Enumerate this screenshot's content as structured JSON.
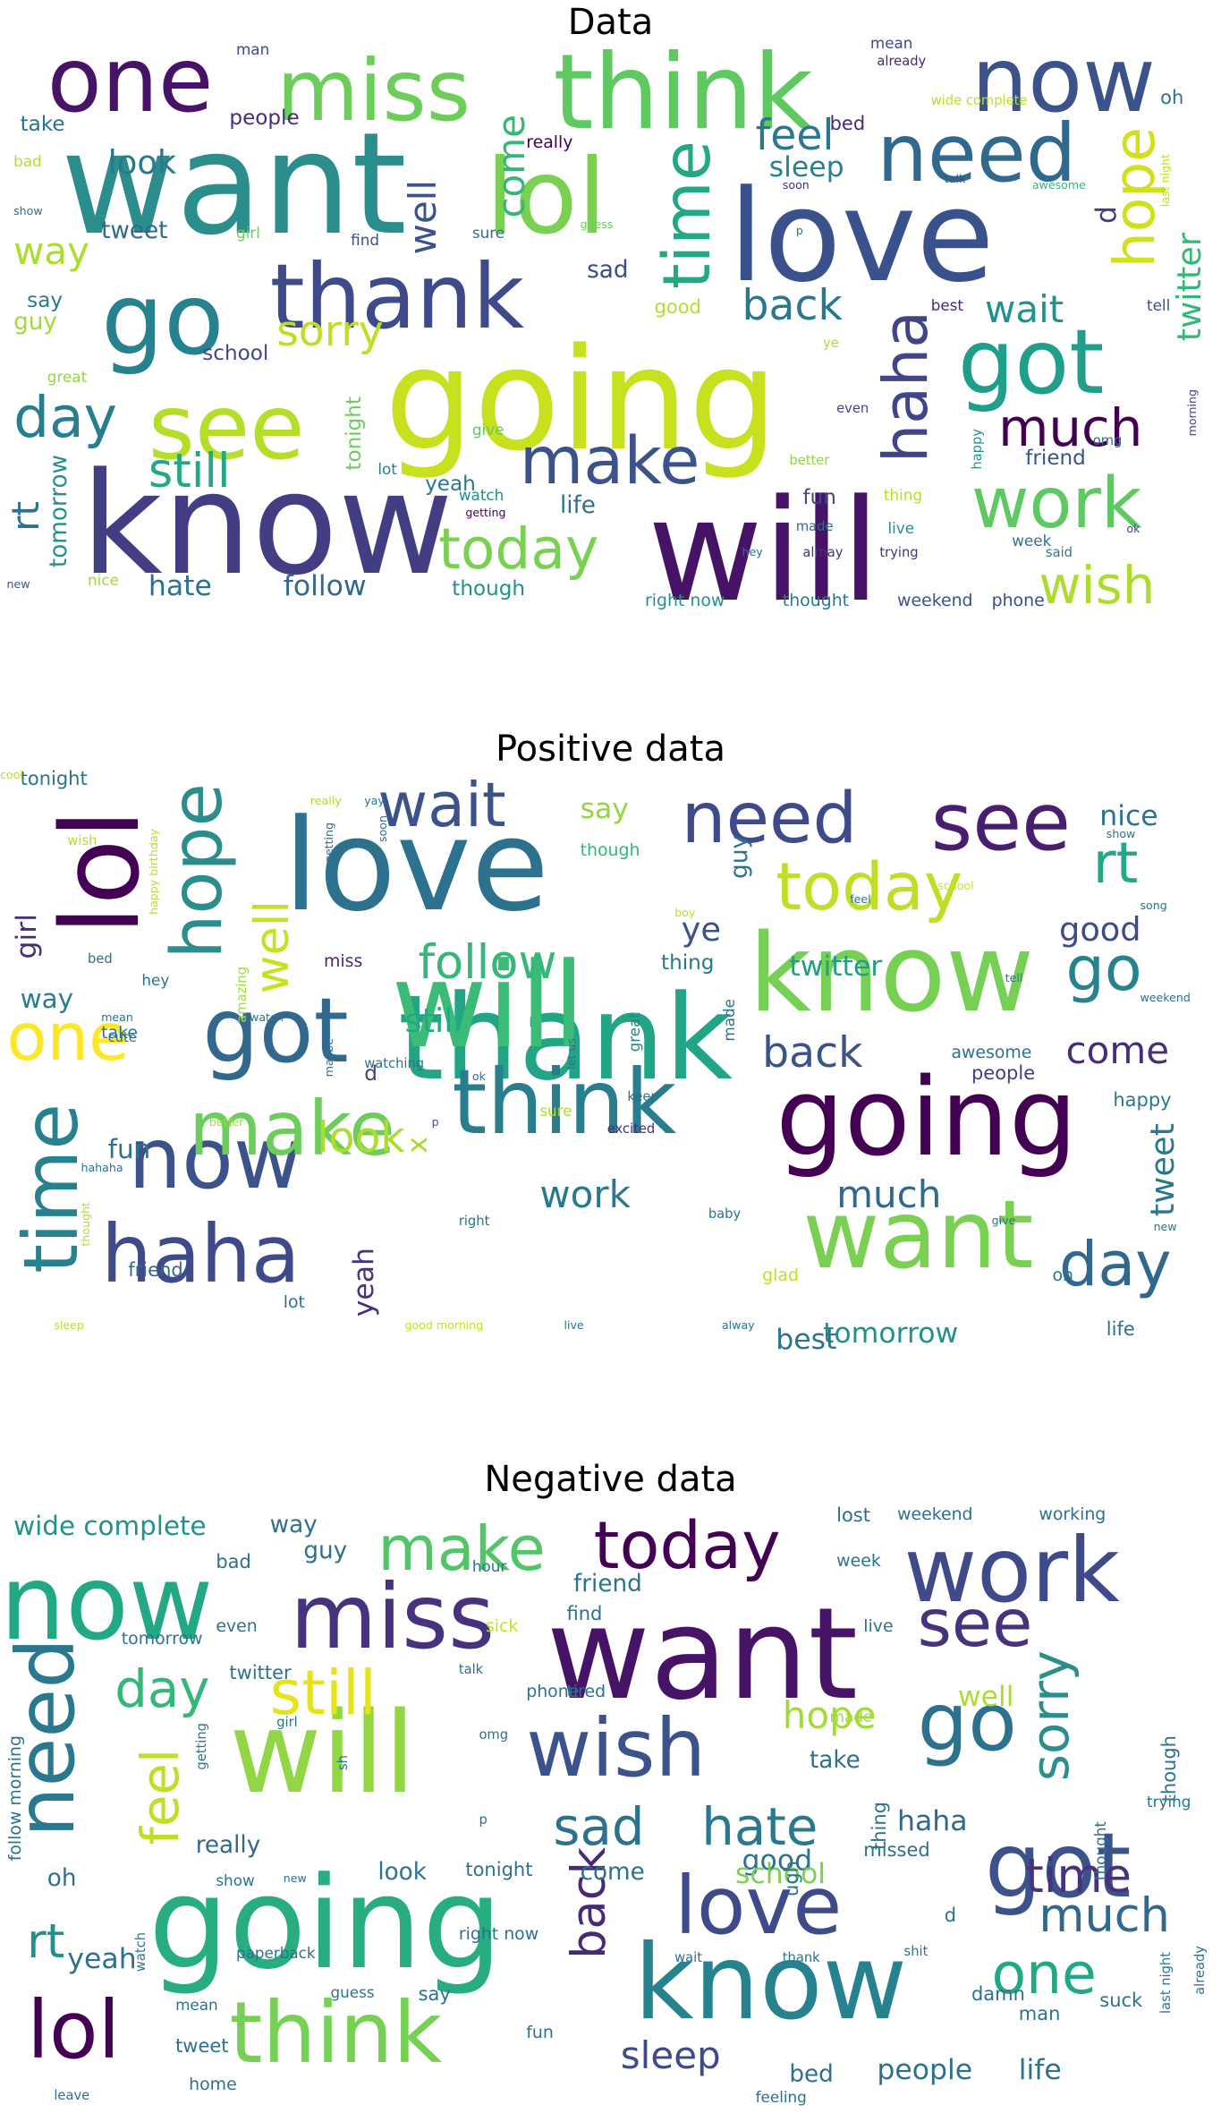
{
  "colors": {
    "background": "#ffffff",
    "title": "#000000"
  },
  "panels": [
    {
      "title": "Data",
      "words": [
        [
          "want",
          "#2c8e8c"
        ],
        [
          "going",
          "#c7e11f"
        ],
        [
          "know",
          "#433d84"
        ],
        [
          "will",
          "#471366"
        ],
        [
          "love",
          "#3a528b"
        ],
        [
          "think",
          "#5ec961"
        ],
        [
          "lol",
          "#7ad151"
        ],
        [
          "go",
          "#26828e"
        ],
        [
          "thank",
          "#3e4a89"
        ],
        [
          "see",
          "#b5de2b"
        ],
        [
          "one",
          "#471366"
        ],
        [
          "miss",
          "#6ccd5a"
        ],
        [
          "now",
          "#3b528b"
        ],
        [
          "got",
          "#1f9e89"
        ],
        [
          "need",
          "#31688e"
        ],
        [
          "make",
          "#3b528b"
        ],
        [
          "work",
          "#5ec962"
        ],
        [
          "today",
          "#7ad151"
        ],
        [
          "wish",
          "#addc30"
        ],
        [
          "time",
          "#22a884"
        ],
        [
          "haha",
          "#414487"
        ],
        [
          "much",
          "#440154"
        ],
        [
          "day",
          "#287d8e"
        ],
        [
          "hope",
          "#d0e11c"
        ],
        [
          "feel",
          "#2a788e"
        ],
        [
          "still",
          "#22a884"
        ],
        [
          "sorry",
          "#bddf26"
        ],
        [
          "back",
          "#2a788e"
        ],
        [
          "wait",
          "#21918c"
        ],
        [
          "come",
          "#35b779"
        ],
        [
          "well",
          "#3b528b"
        ],
        [
          "look",
          "#2a788e"
        ],
        [
          "way",
          "#addc30"
        ],
        [
          "sleep",
          "#26828e"
        ],
        [
          "hate",
          "#2c728e"
        ],
        [
          "follow",
          "#31688e"
        ],
        [
          "rt",
          "#2c728e"
        ],
        [
          "tomorrow",
          "#21918c"
        ],
        [
          "twitter",
          "#35b779"
        ],
        [
          "tweet",
          "#31688e"
        ],
        [
          "people",
          "#472d7b"
        ],
        [
          "sad",
          "#3e4a89"
        ],
        [
          "good",
          "#b5de2b"
        ],
        [
          "school",
          "#3e4a89"
        ],
        [
          "yeah",
          "#2a788e"
        ],
        [
          "life",
          "#2c728e"
        ],
        [
          "say",
          "#287d8e"
        ],
        [
          "guy",
          "#a2da37"
        ],
        [
          "take",
          "#2c728e"
        ],
        [
          "tonight",
          "#6ccd5a"
        ],
        [
          "friend",
          "#3b528b"
        ],
        [
          "fun",
          "#3e4a89"
        ],
        [
          "though",
          "#21918c"
        ],
        [
          "right now",
          "#21918c"
        ],
        [
          "thought",
          "#2a788e"
        ],
        [
          "weekend",
          "#3b528b"
        ],
        [
          "phone",
          "#3e4a89"
        ],
        [
          "d",
          "#433d84"
        ],
        [
          "bed",
          "#482878"
        ],
        [
          "oh",
          "#2c728e"
        ],
        [
          "mean",
          "#3e4a89"
        ],
        [
          "man",
          "#3e4a89"
        ],
        [
          "really",
          "#440154"
        ],
        [
          "sure",
          "#2c728e"
        ],
        [
          "find",
          "#3b528b"
        ],
        [
          "girl",
          "#6ccd5a"
        ],
        [
          "best",
          "#482878"
        ],
        [
          "tell",
          "#3b528b"
        ],
        [
          "great",
          "#90d743"
        ],
        [
          "lot",
          "#26828e"
        ],
        [
          "watch",
          "#21918c"
        ],
        [
          "getting",
          "#440154"
        ],
        [
          "give",
          "#5ec962"
        ],
        [
          "even",
          "#414487"
        ],
        [
          "happy",
          "#21918c"
        ],
        [
          "better",
          "#8fd744"
        ],
        [
          "made",
          "#31688e"
        ],
        [
          "live",
          "#21918c"
        ],
        [
          "trying",
          "#46327e"
        ],
        [
          "week",
          "#2c728e"
        ],
        [
          "thing",
          "#b5de2b"
        ],
        [
          "omg",
          "#31688e"
        ],
        [
          "nice",
          "#a2da37"
        ],
        [
          "new",
          "#3b528b"
        ],
        [
          "bad",
          "#b5de2b"
        ],
        [
          "show",
          "#2c728e"
        ],
        [
          "already",
          "#482878"
        ],
        [
          "wide complete",
          "#bddf26"
        ],
        [
          "last night",
          "#bddf26"
        ],
        [
          "soon",
          "#46327e"
        ],
        [
          "talk",
          "#3b528b"
        ],
        [
          "awesome",
          "#35b779"
        ],
        [
          "guess",
          "#6ccd5a"
        ],
        [
          "p",
          "#2c728e"
        ],
        [
          "ye",
          "#addc30"
        ],
        [
          "morning",
          "#433d84"
        ],
        [
          "hey",
          "#2c728e"
        ],
        [
          "almay",
          "#46327e"
        ],
        [
          "ok",
          "#414487"
        ],
        [
          "said",
          "#287d8e"
        ]
      ]
    },
    {
      "title": "Positive data",
      "words": [
        [
          "love",
          "#2c728e"
        ],
        [
          "thank",
          "#21a585"
        ],
        [
          "going",
          "#440154"
        ],
        [
          "will",
          "#3bbb75"
        ],
        [
          "know",
          "#75d054"
        ],
        [
          "lol",
          "#440154"
        ],
        [
          "think",
          "#287d8e"
        ],
        [
          "want",
          "#7ad151"
        ],
        [
          "got",
          "#31688e"
        ],
        [
          "haha",
          "#3e4a89"
        ],
        [
          "now",
          "#3b528b"
        ],
        [
          "time",
          "#26828e"
        ],
        [
          "make",
          "#6ccd5a"
        ],
        [
          "see",
          "#481f70"
        ],
        [
          "need",
          "#3e4a89"
        ],
        [
          "wait",
          "#3b528b"
        ],
        [
          "today",
          "#bddf26"
        ],
        [
          "hope",
          "#2c8e8c"
        ],
        [
          "one",
          "#fde725"
        ],
        [
          "day",
          "#31688e"
        ],
        [
          "go",
          "#26828e"
        ],
        [
          "rt",
          "#22a884"
        ],
        [
          "follow",
          "#35b779"
        ],
        [
          "back",
          "#3b528b"
        ],
        [
          "look",
          "#addc30"
        ],
        [
          "work",
          "#2a788e"
        ],
        [
          "much",
          "#31688e"
        ],
        [
          "come",
          "#472d7b"
        ],
        [
          "good",
          "#3e4a89"
        ],
        [
          "well",
          "#c7e11f"
        ],
        [
          "tweet",
          "#2a788e"
        ],
        [
          "still",
          "#22a884"
        ],
        [
          "girl",
          "#472d7b"
        ],
        [
          "twitter",
          "#1f9e89"
        ],
        [
          "tomorrow",
          "#21918c"
        ],
        [
          "best",
          "#2c728e"
        ],
        [
          "guy",
          "#2c728e"
        ],
        [
          "yeah",
          "#46327e"
        ],
        [
          "fun",
          "#2c728e"
        ],
        [
          "say",
          "#90d743"
        ],
        [
          "nice",
          "#2c728e"
        ],
        [
          "way",
          "#287d8e"
        ],
        [
          "ye",
          "#3b528b"
        ],
        [
          "x",
          "#a2da37"
        ],
        [
          "d",
          "#433d84"
        ],
        [
          "tonight",
          "#2c728e"
        ],
        [
          "though",
          "#35b779"
        ],
        [
          "thing",
          "#2a788e"
        ],
        [
          "people",
          "#433d84"
        ],
        [
          "happy",
          "#2a788e"
        ],
        [
          "friend",
          "#31688e"
        ],
        [
          "lot",
          "#2c728e"
        ],
        [
          "awesome",
          "#2c728e"
        ],
        [
          "life",
          "#2c728e"
        ],
        [
          "miss",
          "#482878"
        ],
        [
          "glad",
          "#bddf26"
        ],
        [
          "oh",
          "#2c728e"
        ],
        [
          "take",
          "#2c728e"
        ],
        [
          "hey",
          "#2c728e"
        ],
        [
          "great",
          "#26828e"
        ],
        [
          "made",
          "#2c728e"
        ],
        [
          "amazing",
          "#a2da37"
        ],
        [
          "bed",
          "#2c728e"
        ],
        [
          "watching",
          "#2c728e"
        ],
        [
          "sure",
          "#addc30"
        ],
        [
          "excited",
          "#472d7b"
        ],
        [
          "let us",
          "#2c728e"
        ],
        [
          "keep",
          "#2c728e"
        ],
        [
          "baby",
          "#2c728e"
        ],
        [
          "right",
          "#2c728e"
        ],
        [
          "p",
          "#3b528b"
        ],
        [
          "cute",
          "#2c728e"
        ],
        [
          "mean",
          "#2c728e"
        ],
        [
          "watch",
          "#2c728e"
        ],
        [
          "maybe",
          "#2c728e"
        ],
        [
          "better",
          "#a2da37"
        ],
        [
          "ok",
          "#2c728e"
        ],
        [
          "give",
          "#2c728e"
        ],
        [
          "new",
          "#2c728e"
        ],
        [
          "really",
          "#addc30"
        ],
        [
          "yay",
          "#2c728e"
        ],
        [
          "wish",
          "#b5de2b"
        ],
        [
          "happy birthday",
          "#bddf26"
        ],
        [
          "getting",
          "#2c728e"
        ],
        [
          "soon",
          "#2c728e"
        ],
        [
          "boy",
          "#bddf26"
        ],
        [
          "feel",
          "#2c728e"
        ],
        [
          "school",
          "#d0e11c"
        ],
        [
          "song",
          "#2c728e"
        ],
        [
          "show",
          "#2c728e"
        ],
        [
          "tell",
          "#2c728e"
        ],
        [
          "weekend",
          "#2c728e"
        ],
        [
          "hahaha",
          "#2c728e"
        ],
        [
          "thought",
          "#b5de2b"
        ],
        [
          "sleep",
          "#bddf26"
        ],
        [
          "good morning",
          "#bddf26"
        ],
        [
          "live",
          "#2c728e"
        ],
        [
          "alway",
          "#2c728e"
        ],
        [
          "cool",
          "#bddf26"
        ]
      ]
    },
    {
      "title": "Negative data",
      "words": [
        [
          "want",
          "#471366"
        ],
        [
          "going",
          "#27ad81"
        ],
        [
          "will",
          "#90d743"
        ],
        [
          "know",
          "#26828e"
        ],
        [
          "now",
          "#22a884"
        ],
        [
          "miss",
          "#46327e"
        ],
        [
          "work",
          "#3e4a89"
        ],
        [
          "got",
          "#3b528b"
        ],
        [
          "go",
          "#2c728e"
        ],
        [
          "wish",
          "#3b528b"
        ],
        [
          "think",
          "#75d054"
        ],
        [
          "love",
          "#3e4a89"
        ],
        [
          "lol",
          "#440154"
        ],
        [
          "need",
          "#2a788e"
        ],
        [
          "make",
          "#52c569"
        ],
        [
          "today",
          "#440154"
        ],
        [
          "see",
          "#46327e"
        ],
        [
          "still",
          "#e5e419"
        ],
        [
          "day",
          "#35b779"
        ],
        [
          "sad",
          "#2c728e"
        ],
        [
          "hate",
          "#2a788e"
        ],
        [
          "back",
          "#482878"
        ],
        [
          "sorry",
          "#2c8e8c"
        ],
        [
          "time",
          "#46327e"
        ],
        [
          "much",
          "#31688e"
        ],
        [
          "one",
          "#22a884"
        ],
        [
          "rt",
          "#21918c"
        ],
        [
          "feel",
          "#bddf26"
        ],
        [
          "hope",
          "#a2da37"
        ],
        [
          "sleep",
          "#3e4a89"
        ],
        [
          "good",
          "#2c728e"
        ],
        [
          "school",
          "#7ad151"
        ],
        [
          "yeah",
          "#2c728e"
        ],
        [
          "look",
          "#2c728e"
        ],
        [
          "come",
          "#2c728e"
        ],
        [
          "haha",
          "#31688e"
        ],
        [
          "really",
          "#31688e"
        ],
        [
          "tonight",
          "#2c728e"
        ],
        [
          "take",
          "#2c728e"
        ],
        [
          "well",
          "#addc30"
        ],
        [
          "people",
          "#2c728e"
        ],
        [
          "life",
          "#2c728e"
        ],
        [
          "bed",
          "#2c728e"
        ],
        [
          "tweet",
          "#2c728e"
        ],
        [
          "say",
          "#2c728e"
        ],
        [
          "oh",
          "#2c728e"
        ],
        [
          "friend",
          "#2c728e"
        ],
        [
          "find",
          "#2c728e"
        ],
        [
          "guy",
          "#2c728e"
        ],
        [
          "bad",
          "#2c728e"
        ],
        [
          "wide complete",
          "#21918c"
        ],
        [
          "way",
          "#2c728e"
        ],
        [
          "lost",
          "#2c728e"
        ],
        [
          "weekend",
          "#2c728e"
        ],
        [
          "working",
          "#2c728e"
        ],
        [
          "week",
          "#2c728e"
        ],
        [
          "hour",
          "#2c728e"
        ],
        [
          "tomorrow",
          "#2c728e"
        ],
        [
          "even",
          "#2c728e"
        ],
        [
          "live",
          "#2c728e"
        ],
        [
          "sick",
          "#c7e11f"
        ],
        [
          "phone",
          "#2c728e"
        ],
        [
          "tired",
          "#2c728e"
        ],
        [
          "twitter",
          "#2c728e"
        ],
        [
          "talk",
          "#2c728e"
        ],
        [
          "getting",
          "#2c728e"
        ],
        [
          "girl",
          "#2c728e"
        ],
        [
          "made",
          "#a2da37"
        ],
        [
          "omg",
          "#2c728e"
        ],
        [
          "thing",
          "#2c728e"
        ],
        [
          "missed",
          "#2c728e"
        ],
        [
          "right now",
          "#2c728e"
        ],
        [
          "ugh",
          "#2c728e"
        ],
        [
          "trying",
          "#2c728e"
        ],
        [
          "thought",
          "#2c728e"
        ],
        [
          "though",
          "#2c728e"
        ],
        [
          "follow morning",
          "#2c728e"
        ],
        [
          "paperback",
          "#2c728e"
        ],
        [
          "watch",
          "#2c728e"
        ],
        [
          "wait",
          "#2c728e"
        ],
        [
          "thank",
          "#2c728e"
        ],
        [
          "shit",
          "#2c728e"
        ],
        [
          "damn",
          "#2c728e"
        ],
        [
          "man",
          "#2c728e"
        ],
        [
          "last night",
          "#2c728e"
        ],
        [
          "already",
          "#2c728e"
        ],
        [
          "suck",
          "#2c728e"
        ],
        [
          "guess",
          "#2c728e"
        ],
        [
          "fun",
          "#2c728e"
        ],
        [
          "feeling",
          "#2c728e"
        ],
        [
          "home",
          "#2c728e"
        ],
        [
          "leave",
          "#2c728e"
        ],
        [
          "mean",
          "#2c728e"
        ],
        [
          "show",
          "#2c728e"
        ],
        [
          "new",
          "#2c728e"
        ],
        [
          "d",
          "#2c728e"
        ],
        [
          "p",
          "#2c728e"
        ],
        [
          "sh",
          "#2c728e"
        ]
      ]
    }
  ]
}
